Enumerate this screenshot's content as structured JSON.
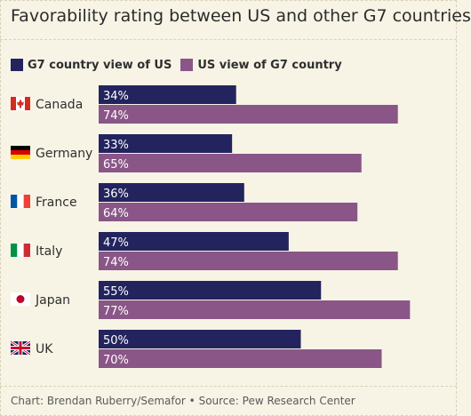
{
  "title": "Favorability rating between US and other G7 countries",
  "footer": "Chart: Brendan Ruberry/Semafor • Source: Pew Research Center",
  "colors": {
    "series1": "#23245e",
    "series2": "#8a5687",
    "label_text": "#ffffff",
    "background": "#f7f4e6"
  },
  "chart_data": {
    "type": "bar",
    "orientation": "horizontal",
    "title": "Favorability rating between US and other G7 countries",
    "categories": [
      "Canada",
      "Germany",
      "France",
      "Italy",
      "Japan",
      "UK"
    ],
    "category_icons": [
      "canada-flag-icon",
      "germany-flag-icon",
      "france-flag-icon",
      "italy-flag-icon",
      "japan-flag-icon",
      "uk-flag-icon"
    ],
    "unit": "%",
    "xlim": [
      0,
      100
    ],
    "grid": false,
    "legend_position": "top-left",
    "series": [
      {
        "name": "G7 country view of US",
        "values": [
          34,
          33,
          36,
          47,
          55,
          50
        ],
        "labels": [
          "34%",
          "33%",
          "36%",
          "47%",
          "55%",
          "50%"
        ]
      },
      {
        "name": "US view of G7 country",
        "values": [
          74,
          65,
          64,
          74,
          77,
          70
        ],
        "labels": [
          "74%",
          "65%",
          "64%",
          "74%",
          "77%",
          "70%"
        ]
      }
    ]
  }
}
